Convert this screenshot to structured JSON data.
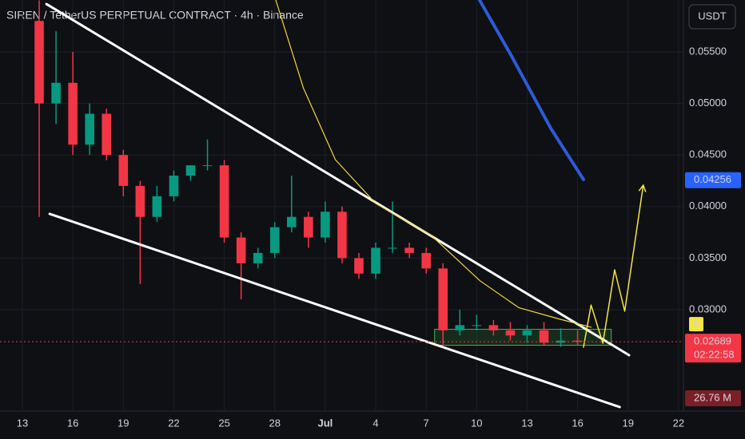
{
  "chart_data": {
    "type": "candlestick",
    "title": "SIREN / TetherUS PERPETUAL CONTRACT · 4h · Binance",
    "currency": "USDT",
    "x": [
      1,
      2,
      3,
      4,
      5,
      6,
      7,
      8,
      9,
      10,
      11,
      12,
      13,
      14,
      15,
      16,
      17,
      18,
      19,
      20,
      21,
      22,
      23,
      24,
      25,
      26,
      27,
      28,
      29,
      30,
      31,
      32,
      33
    ],
    "open": [
      0.058,
      0.05,
      0.052,
      0.046,
      0.049,
      0.045,
      0.042,
      0.039,
      0.041,
      0.043,
      0.044,
      0.044,
      0.037,
      0.0345,
      0.0355,
      0.038,
      0.039,
      0.037,
      0.0395,
      0.035,
      0.0335,
      0.036,
      0.036,
      0.0355,
      0.034,
      0.028,
      0.0285,
      0.0285,
      0.028,
      0.0275,
      0.028,
      0.0268,
      0.027
    ],
    "high": [
      0.06,
      0.057,
      0.055,
      0.05,
      0.0495,
      0.0455,
      0.0425,
      0.042,
      0.0435,
      0.044,
      0.0465,
      0.0445,
      0.0375,
      0.036,
      0.0385,
      0.043,
      0.0395,
      0.0405,
      0.04,
      0.0355,
      0.0365,
      0.0405,
      0.0365,
      0.036,
      0.0345,
      0.03,
      0.0295,
      0.029,
      0.0288,
      0.0285,
      0.0288,
      0.0282,
      0.028
    ],
    "low": [
      0.039,
      0.048,
      0.045,
      0.045,
      0.0445,
      0.041,
      0.0325,
      0.0385,
      0.0405,
      0.0425,
      0.0435,
      0.0365,
      0.031,
      0.034,
      0.035,
      0.0375,
      0.036,
      0.0365,
      0.0345,
      0.033,
      0.033,
      0.0355,
      0.035,
      0.0335,
      0.0265,
      0.0275,
      0.028,
      0.0275,
      0.027,
      0.0268,
      0.0265,
      0.0264,
      0.0266
    ],
    "close": [
      0.05,
      0.052,
      0.046,
      0.049,
      0.045,
      0.042,
      0.039,
      0.041,
      0.043,
      0.044,
      0.044,
      0.037,
      0.0345,
      0.0355,
      0.038,
      0.039,
      0.037,
      0.0395,
      0.035,
      0.0335,
      0.036,
      0.036,
      0.0355,
      0.034,
      0.028,
      0.0285,
      0.0285,
      0.028,
      0.0275,
      0.028,
      0.0268,
      0.027,
      0.02689
    ],
    "up_color": "#089981",
    "down_color": "#f23645",
    "xlim": [
      -1.33,
      39.29
    ],
    "xticks": [
      {
        "value": 0,
        "label": "13"
      },
      {
        "value": 3,
        "label": "16"
      },
      {
        "value": 6,
        "label": "19"
      },
      {
        "value": 9,
        "label": "22"
      },
      {
        "value": 12,
        "label": "25"
      },
      {
        "value": 15,
        "label": "28"
      },
      {
        "value": 18,
        "label": "Jul"
      },
      {
        "value": 21,
        "label": "4"
      },
      {
        "value": 24,
        "label": "7"
      },
      {
        "value": 27,
        "label": "10"
      },
      {
        "value": 30,
        "label": "13"
      },
      {
        "value": 33,
        "label": "16"
      },
      {
        "value": 36,
        "label": "19"
      },
      {
        "value": 39,
        "label": "22"
      }
    ],
    "ylim": [
      0.02017,
      0.06003
    ],
    "yticks": [
      {
        "value": 0.03,
        "label": "0.03000"
      },
      {
        "value": 0.035,
        "label": "0.03500"
      },
      {
        "value": 0.04,
        "label": "0.04000"
      },
      {
        "value": 0.045,
        "label": "0.04500"
      },
      {
        "value": 0.05,
        "label": "0.05000"
      },
      {
        "value": 0.055,
        "label": "0.05500"
      }
    ],
    "overlays": [
      {
        "color": "#ffffff",
        "width": 3,
        "x": [
          1.43,
          36.06
        ],
        "values": [
          0.05964,
          0.02559
        ]
      },
      {
        "color": "#ffffff",
        "width": 3,
        "x": [
          1.62,
          35.5
        ],
        "values": [
          0.03929,
          0.02056
        ]
      },
      {
        "color": "#f5d63d",
        "width": 1.2,
        "x": [
          15.06,
          16.7,
          18.6,
          21,
          24.3,
          27.2,
          29.5,
          31.9,
          33.8
        ],
        "values": [
          0.06003,
          0.0515,
          0.04455,
          0.0403,
          0.0372,
          0.0328,
          0.0302,
          0.0291,
          0.0283
        ]
      },
      {
        "color": "#2e5bd6",
        "width": 4,
        "x": [
          27.17,
          29.07,
          31.4,
          33.35
        ],
        "values": [
          0.06003,
          0.0546,
          0.0476,
          0.04262
        ]
      },
      {
        "color": "#f5e642",
        "width": 1.5,
        "arrow": true,
        "x": [
          33.35,
          33.8,
          34.5,
          35.2,
          35.8,
          36.9
        ],
        "values": [
          0.02636,
          0.03045,
          0.02675,
          0.03387,
          0.02985,
          0.04207
        ]
      }
    ],
    "zone": {
      "color": "#2e7d32",
      "x": [
        24.5,
        35
      ],
      "y": [
        0.02655,
        0.0281
      ]
    },
    "price_labels": [
      {
        "value": 0.04256,
        "label": "0.04256",
        "color": "#2962ff"
      },
      {
        "value": 0.02689,
        "label": "0.02689",
        "color": "#f23645"
      }
    ],
    "countdown": "02:22:58",
    "indicator_label": "0",
    "volume_label": "26.76 M"
  }
}
